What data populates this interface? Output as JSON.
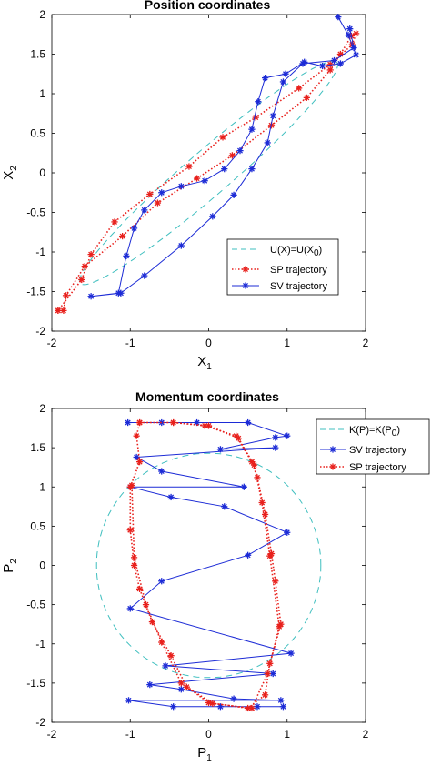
{
  "chart_data": [
    {
      "type": "line",
      "title": "Position coordinates",
      "xlabel": "X",
      "xlabel_sub": "1",
      "ylabel": "X",
      "ylabel_sub": "2",
      "xlim": [
        -2,
        2
      ],
      "ylim": [
        -2,
        2
      ],
      "xticks": [
        "-2",
        "-1",
        "0",
        "1",
        "2"
      ],
      "yticks": [
        "-2",
        "-1.5",
        "-1",
        "-0.5",
        "0",
        "0.5",
        "1",
        "1.5",
        "2"
      ],
      "grid": false,
      "legend_placement": "bottom-right",
      "legend": [
        "U(X)=U(X",
        "0",
        ")",
        "SP trajectory",
        "SV trajectory"
      ],
      "series": [
        {
          "name": "U(X)=U(X0)",
          "style": "dashed",
          "color": "#3fbfbf",
          "ellipse": {
            "center": [
              0,
              0
            ],
            "semi_major": 2.15,
            "semi_minor": 0.28,
            "angle_deg": 40.5
          }
        },
        {
          "name": "SP trajectory",
          "style": "dotted",
          "marker": "*",
          "color": "#e8201c",
          "points": [
            [
              -1.92,
              -1.74
            ],
            [
              -1.85,
              -1.74
            ],
            [
              -1.82,
              -1.55
            ],
            [
              -1.58,
              -1.18
            ],
            [
              -1.1,
              -0.8
            ],
            [
              -0.65,
              -0.38
            ],
            [
              -0.15,
              -0.07
            ],
            [
              0.3,
              0.22
            ],
            [
              0.8,
              0.6
            ],
            [
              1.25,
              0.95
            ],
            [
              1.55,
              1.3
            ],
            [
              1.68,
              1.5
            ],
            [
              1.82,
              1.73
            ],
            [
              1.88,
              1.76
            ],
            [
              1.83,
              1.62
            ],
            [
              1.55,
              1.37
            ],
            [
              1.15,
              1.07
            ],
            [
              0.6,
              0.7
            ],
            [
              0.18,
              0.45
            ],
            [
              -0.25,
              0.08
            ],
            [
              -0.75,
              -0.27
            ],
            [
              -1.2,
              -0.62
            ],
            [
              -1.5,
              -1.03
            ],
            [
              -1.62,
              -1.35
            ],
            [
              -1.92,
              -1.74
            ]
          ]
        },
        {
          "name": "SV trajectory",
          "style": "solid",
          "marker": "*",
          "color": "#1c2bd6",
          "points": [
            [
              1.65,
              1.97
            ],
            [
              1.78,
              1.74
            ],
            [
              1.88,
              1.49
            ],
            [
              1.68,
              1.38
            ],
            [
              1.45,
              1.35
            ],
            [
              1.22,
              1.4
            ],
            [
              0.98,
              1.25
            ],
            [
              0.72,
              1.2
            ],
            [
              0.63,
              0.9
            ],
            [
              0.55,
              0.55
            ],
            [
              0.4,
              0.28
            ],
            [
              0.2,
              0.05
            ],
            [
              -0.05,
              -0.1
            ],
            [
              -0.35,
              -0.17
            ],
            [
              -0.6,
              -0.25
            ],
            [
              -0.82,
              -0.47
            ],
            [
              -0.95,
              -0.7
            ],
            [
              -1.05,
              -1.05
            ],
            [
              -1.15,
              -1.52
            ],
            [
              -1.5,
              -1.56
            ],
            [
              -1.12,
              -1.52
            ],
            [
              -0.82,
              -1.3
            ],
            [
              -0.35,
              -0.92
            ],
            [
              0.05,
              -0.55
            ],
            [
              0.32,
              -0.28
            ],
            [
              0.55,
              0.05
            ],
            [
              0.75,
              0.38
            ],
            [
              0.82,
              0.72
            ],
            [
              0.95,
              1.15
            ],
            [
              1.2,
              1.38
            ],
            [
              1.6,
              1.42
            ],
            [
              1.85,
              1.58
            ],
            [
              1.8,
              1.82
            ]
          ]
        }
      ]
    },
    {
      "type": "line",
      "title": "Momentum coordinates",
      "xlabel": "P",
      "xlabel_sub": "1",
      "ylabel": "P",
      "ylabel_sub": "2",
      "xlim": [
        -2,
        2
      ],
      "ylim": [
        -2,
        2
      ],
      "xticks": [
        "-2",
        "-1",
        "0",
        "1",
        "2"
      ],
      "yticks": [
        "-2",
        "-1.5",
        "-1",
        "-0.5",
        "0",
        "0.5",
        "1",
        "1.5",
        "2"
      ],
      "grid": false,
      "legend_placement": "top-right",
      "legend": [
        "K(P)=K(P",
        "0",
        ")",
        "SV trajectory",
        "SP trajectory"
      ],
      "series": [
        {
          "name": "K(P)=K(P0)",
          "style": "dashed",
          "color": "#3fbfbf",
          "circle": {
            "center": [
              0,
              0
            ],
            "radius": 1.43
          }
        },
        {
          "name": "SV trajectory",
          "style": "solid",
          "marker": "*",
          "color": "#1c2bd6",
          "points": [
            [
              -1.03,
              1.82
            ],
            [
              -0.6,
              1.82
            ],
            [
              -0.15,
              1.82
            ],
            [
              0.5,
              1.82
            ],
            [
              1.0,
              1.65
            ],
            [
              0.85,
              1.63
            ],
            [
              0.15,
              1.48
            ],
            [
              0.85,
              1.5
            ],
            [
              -0.92,
              1.38
            ],
            [
              -0.6,
              1.2
            ],
            [
              0.45,
              1.0
            ],
            [
              -1.0,
              1.0
            ],
            [
              -0.48,
              0.87
            ],
            [
              0.2,
              0.75
            ],
            [
              1.0,
              0.42
            ],
            [
              0.5,
              0.13
            ],
            [
              -0.6,
              -0.2
            ],
            [
              -1.0,
              -0.55
            ],
            [
              1.05,
              -1.12
            ],
            [
              -0.55,
              -1.28
            ],
            [
              0.82,
              -1.38
            ],
            [
              -0.75,
              -1.52
            ],
            [
              -0.35,
              -1.58
            ],
            [
              0.32,
              -1.7
            ],
            [
              0.92,
              -1.72
            ],
            [
              -1.02,
              -1.72
            ],
            [
              -0.45,
              -1.8
            ],
            [
              0.15,
              -1.8
            ],
            [
              0.62,
              -1.8
            ],
            [
              0.95,
              -1.8
            ]
          ]
        },
        {
          "name": "SP trajectory",
          "style": "dotted",
          "marker": "*",
          "color": "#e8201c",
          "points": [
            [
              -0.88,
              1.82
            ],
            [
              -0.45,
              1.82
            ],
            [
              -0.05,
              1.78
            ],
            [
              0.35,
              1.65
            ],
            [
              0.55,
              1.32
            ],
            [
              0.62,
              1.12
            ],
            [
              0.72,
              0.65
            ],
            [
              0.8,
              0.15
            ],
            [
              0.85,
              -0.2
            ],
            [
              0.92,
              -0.75
            ],
            [
              0.78,
              -1.25
            ],
            [
              0.72,
              -1.65
            ],
            [
              0.5,
              -1.82
            ],
            [
              0.0,
              -1.75
            ],
            [
              -0.28,
              -1.55
            ],
            [
              -0.48,
              -1.15
            ],
            [
              -0.72,
              -0.72
            ],
            [
              -0.88,
              -0.3
            ],
            [
              -0.95,
              0.0
            ],
            [
              -1.0,
              0.45
            ],
            [
              -1.0,
              1.0
            ],
            [
              -0.88,
              1.32
            ],
            [
              -0.92,
              1.65
            ],
            [
              -0.88,
              1.82
            ],
            [
              -0.45,
              1.82
            ],
            [
              0.0,
              1.78
            ],
            [
              0.38,
              1.62
            ],
            [
              0.58,
              1.28
            ],
            [
              0.68,
              0.8
            ],
            [
              0.78,
              0.12
            ],
            [
              0.9,
              -0.78
            ],
            [
              0.75,
              -1.38
            ],
            [
              0.55,
              -1.82
            ],
            [
              0.05,
              -1.76
            ],
            [
              -0.35,
              -1.5
            ],
            [
              -0.6,
              -0.98
            ],
            [
              -0.8,
              -0.5
            ],
            [
              -0.95,
              0.1
            ],
            [
              -0.98,
              1.02
            ]
          ]
        }
      ]
    }
  ]
}
